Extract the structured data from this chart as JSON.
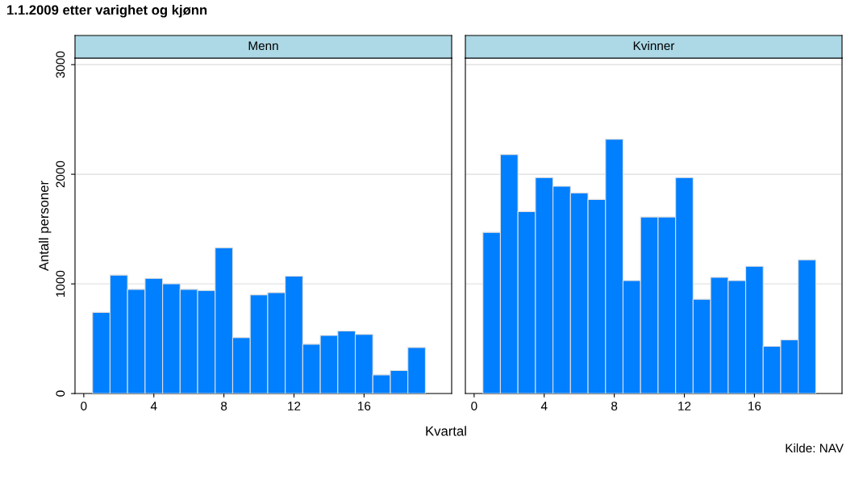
{
  "chart_data": [
    {
      "type": "histogram",
      "title": "Menn",
      "ylabel": "Antall personer",
      "xlabel": "Kvartal",
      "annotations": [
        "1.1.2009 etter varighet og kjønn"
      ],
      "bins": [
        0.5,
        1.5,
        2.5,
        3.5,
        4.5,
        5.5,
        6.5,
        7.5,
        8.5,
        9.5,
        10.5,
        11.5,
        12.5,
        13.5,
        14.5,
        15.5,
        16.5,
        17.5,
        18.5,
        19.5
      ],
      "values": [
        740,
        1080,
        950,
        1050,
        1000,
        950,
        940,
        1330,
        510,
        900,
        920,
        1070,
        450,
        530,
        570,
        540,
        170,
        210,
        420
      ],
      "color": "#007fff",
      "xlim": [
        -0.5,
        21
      ],
      "xticks": [
        0,
        4,
        8,
        12,
        16
      ],
      "ylim": [
        0,
        3060
      ],
      "yticks": [
        0,
        1000,
        2000,
        3000
      ],
      "grid": "y"
    },
    {
      "type": "histogram",
      "title": "Kvinner",
      "annotations": [
        "Kilde: NAV"
      ],
      "bins": [
        0.5,
        1.5,
        2.5,
        3.5,
        4.5,
        5.5,
        6.5,
        7.5,
        8.5,
        9.5,
        10.5,
        11.5,
        12.5,
        13.5,
        14.5,
        15.5,
        16.5,
        17.5,
        18.5,
        19.5
      ],
      "values": [
        1470,
        2180,
        1660,
        1970,
        1890,
        1830,
        1770,
        2320,
        1030,
        1610,
        1610,
        1970,
        860,
        1060,
        1030,
        1160,
        430,
        490,
        1220
      ],
      "color": "#007fff",
      "xlim": [
        -0.5,
        21
      ],
      "xticks": [
        0,
        4,
        8,
        12,
        16
      ],
      "ylim": [
        0,
        3060
      ],
      "yticks": [
        0,
        1000,
        2000,
        3000
      ],
      "grid": "y",
      "tick_labels": "x"
    }
  ]
}
